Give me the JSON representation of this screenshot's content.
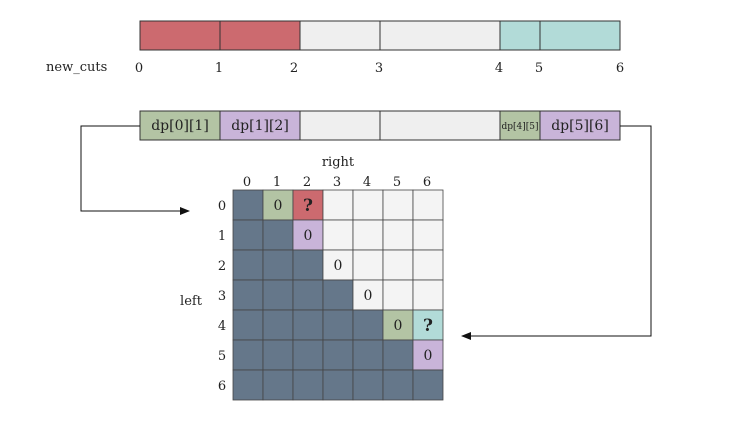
{
  "labels": {
    "new_cuts": "new_cuts",
    "right": "right",
    "left": "left"
  },
  "cuts": {
    "values": [
      "0",
      "1",
      "2",
      "3",
      "4",
      "5",
      "6"
    ],
    "segment_colors": [
      "#cc6a6f",
      "#cc6a6f",
      "#efefef",
      "#efefef",
      "#b2dbd8",
      "#b2dbd8"
    ]
  },
  "dp_row": {
    "segments": [
      {
        "label": "dp[0][1]",
        "color": "#b3c4a4"
      },
      {
        "label": "dp[1][2]",
        "color": "#c9b4d9"
      },
      {
        "label": "",
        "color": "#efefef"
      },
      {
        "label": "",
        "color": "#efefef"
      },
      {
        "label": "dp[4][5]",
        "color": "#b3c4a4"
      },
      {
        "label": "dp[5][6]",
        "color": "#c9b4d9"
      }
    ]
  },
  "matrix": {
    "col_headers": [
      "0",
      "1",
      "2",
      "3",
      "4",
      "5",
      "6"
    ],
    "row_headers": [
      "0",
      "1",
      "2",
      "3",
      "4",
      "5",
      "6"
    ],
    "colors": {
      "dark": "#65778a",
      "light": "#f4f4f4",
      "green": "#b3c4a4",
      "purple": "#c9b4d9",
      "red": "#cc6a6f",
      "teal": "#b2dbd8"
    },
    "special_cells": [
      {
        "row": 0,
        "col": 1,
        "color": "green",
        "text": "0"
      },
      {
        "row": 0,
        "col": 2,
        "color": "red",
        "text": "?"
      },
      {
        "row": 1,
        "col": 2,
        "color": "purple",
        "text": "0"
      },
      {
        "row": 2,
        "col": 3,
        "color": "light",
        "text": "0"
      },
      {
        "row": 3,
        "col": 4,
        "color": "light",
        "text": "0"
      },
      {
        "row": 4,
        "col": 5,
        "color": "green",
        "text": "0"
      },
      {
        "row": 4,
        "col": 6,
        "color": "teal",
        "text": "?"
      },
      {
        "row": 5,
        "col": 6,
        "color": "purple",
        "text": "0"
      }
    ]
  }
}
